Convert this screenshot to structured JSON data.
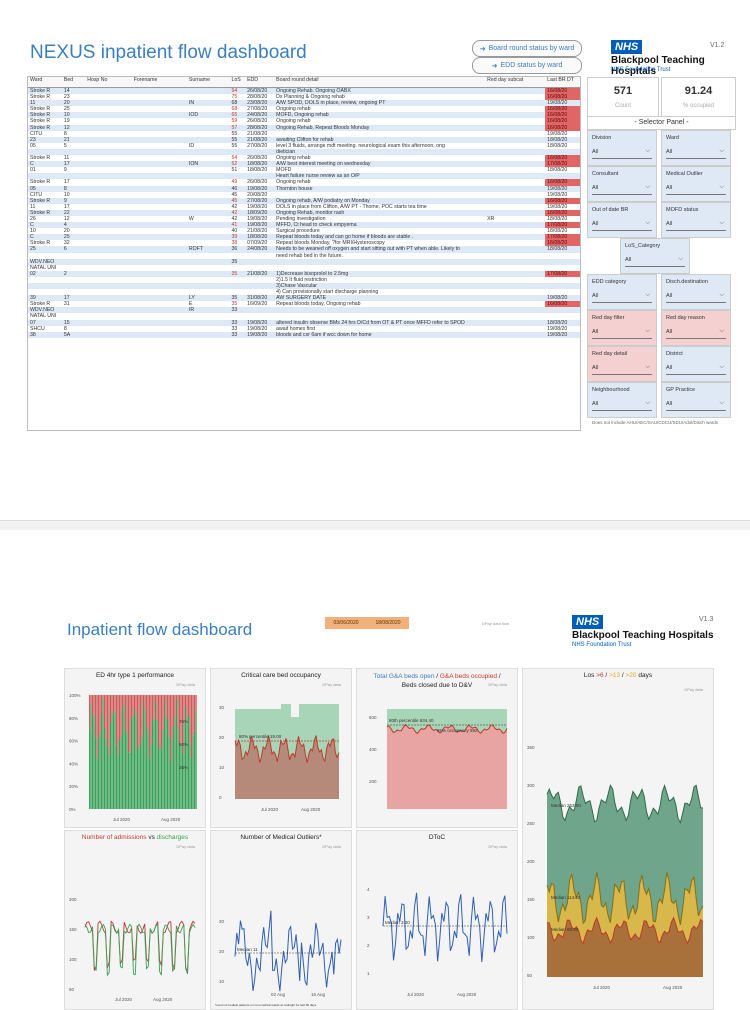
{
  "dash1": {
    "title": "NEXUS inpatient flow dashboard",
    "nav": [
      {
        "label": "Board round status by ward",
        "icon": "arrow-icon"
      },
      {
        "label": "EDD status by ward",
        "icon": "arrow-icon"
      }
    ],
    "nhs": "NHS",
    "trust": "Blackpool Teaching Hospitals",
    "trust_sub": "NHS Foundation Trust",
    "version": "V1.2",
    "columns": [
      "Ward",
      "Bed",
      "Hosp No",
      "Forename",
      "Surname",
      "LoS",
      "EDD",
      "Board round detail",
      "Red day subcat",
      "Last BR DT"
    ],
    "rows": [
      {
        "ward": "Stroke R",
        "bed": "14",
        "los": "94",
        "edd": "26/08/20",
        "detail": "Ongoing Rehab. Ongoing OABX",
        "sub": "",
        "last": "16/08/20",
        "red": true
      },
      {
        "ward": "Stroke R",
        "bed": "23",
        "los": "75",
        "edd": "28/08/20",
        "detail": "Dx Planning & Ongoing rehab",
        "sub": "",
        "last": "16/08/20",
        "red": true
      },
      {
        "ward": "11",
        "bed": "20",
        "surname": "IN",
        "los": "68",
        "edd": "23/08/20",
        "detail": "A/W SPOD, DOLS in place, review, ongoing PT",
        "sub": "",
        "last": "19/08/20",
        "red": false
      },
      {
        "ward": "Stroke R",
        "bed": "25",
        "los": "68",
        "edd": "27/08/20",
        "detail": "Ongoing rehab",
        "sub": "",
        "last": "16/08/20",
        "red": true
      },
      {
        "ward": "Stroke R",
        "bed": "10",
        "surname": "IOD",
        "los": "65",
        "edd": "24/08/20",
        "detail": "MOFD, Ongoing rehab",
        "sub": "",
        "last": "16/08/20",
        "red": true
      },
      {
        "ward": "Stroke R",
        "bed": "19",
        "los": "59",
        "edd": "26/08/20",
        "detail": "Ongoing rehab",
        "sub": "",
        "last": "16/08/20",
        "red": true
      },
      {
        "ward": "Stroke R",
        "bed": "12",
        "los": "57",
        "edd": "28/08/20",
        "detail": "Ongoing Rehab, Repeat Bloods Monday",
        "sub": "",
        "last": "16/08/20",
        "red": true
      },
      {
        "ward": "CITU",
        "bed": "8",
        "los": "55",
        "edd": "21/08/20",
        "detail": "",
        "sub": "",
        "last": "19/08/20",
        "red": false
      },
      {
        "ward": "23",
        "bed": "21",
        "los": "55",
        "edd": "21/08/20",
        "detail": "awaiting Clifton for rehab",
        "sub": "",
        "last": "18/08/20",
        "red": false
      },
      {
        "ward": "05",
        "bed": "5",
        "surname": "ID",
        "los": "55",
        "edd": "27/08/20",
        "detail": "level 3 fluids, arrange mdt meeting. neurological exam this afternoon, ong",
        "sub": "",
        "last": "18/08/20",
        "red": false
      },
      {
        "ward": "",
        "bed": "",
        "los": "",
        "edd": "",
        "detail": "dietician",
        "sub": "",
        "last": "",
        "red": false
      },
      {
        "ward": "Stroke R",
        "bed": "11",
        "los": "54",
        "edd": "26/08/20",
        "detail": "Ongoing rehab",
        "sub": "",
        "last": "16/08/20",
        "red": true
      },
      {
        "ward": "C",
        "bed": "17",
        "surname": "ION",
        "los": "52",
        "edd": "18/08/20",
        "detail": "A/W best interest meeting on wednesday",
        "sub": "",
        "last": "17/08/20",
        "red": true
      },
      {
        "ward": "01",
        "bed": "9",
        "los": "51",
        "edd": "18/08/20",
        "detail": "MOFD",
        "sub": "",
        "last": "18/08/20",
        "red": false
      },
      {
        "ward": "",
        "bed": "",
        "los": "",
        "edd": "",
        "detail": "Heart failure nurse review as an O/P",
        "sub": "",
        "last": "",
        "red": false
      },
      {
        "ward": "Stroke R",
        "bed": "17",
        "los": "49",
        "edd": "26/08/20",
        "detail": "Ongoing rehab",
        "sub": "",
        "last": "16/08/20",
        "red": true
      },
      {
        "ward": "05",
        "bed": "8",
        "los": "46",
        "edd": "19/08/20",
        "detail": "Thornton house",
        "sub": "",
        "last": "19/08/20",
        "red": false
      },
      {
        "ward": "CITU",
        "bed": "10",
        "los": "45",
        "edd": "20/08/20",
        "detail": "",
        "sub": "",
        "last": "19/08/20",
        "red": false
      },
      {
        "ward": "Stroke R",
        "bed": "9",
        "los": "45",
        "edd": "27/08/20",
        "detail": "Ongoing rehab, A/W podiatry on Monday",
        "sub": "",
        "last": "16/08/20",
        "red": true
      },
      {
        "ward": "11",
        "bed": "17",
        "los": "42",
        "edd": "19/08/20",
        "detail": "DOLS in place from Clifton, A/W PT - Thome, POC starts tea time",
        "sub": "",
        "last": "19/08/20",
        "red": false
      },
      {
        "ward": "Stroke R",
        "bed": "22",
        "los": "42",
        "edd": "18/09/20",
        "detail": "Ongoing Rehab, monitor rash",
        "sub": "",
        "last": "16/08/20",
        "red": true
      },
      {
        "ward": "26",
        "bed": "12",
        "surname": "W",
        "los": "42",
        "edd": "19/08/20",
        "detail": "Pending investigation",
        "sub": "XR",
        "last": "18/08/20",
        "red": false
      },
      {
        "ward": "C",
        "bed": "4",
        "los": "41",
        "edd": "19/08/20",
        "detail": "MFFD, Ct head to check empyema",
        "sub": "",
        "last": "17/08/20",
        "red": true
      },
      {
        "ward": "10",
        "bed": "20",
        "los": "40",
        "edd": "21/08/20",
        "detail": "Surgical procedure",
        "sub": "",
        "last": "18/08/20",
        "red": false
      },
      {
        "ward": "C",
        "bed": "25",
        "los": "39",
        "edd": "18/08/20",
        "detail": "Repeat bloods today and can go home if bloods are stable .",
        "sub": "",
        "last": "17/08/20",
        "red": true
      },
      {
        "ward": "Stroke R",
        "bed": "32",
        "los": "38",
        "edd": "07/09/20",
        "detail": "Repeat bloods Monday, ?for MRI/Hysteroscopy",
        "sub": "",
        "last": "16/08/20",
        "red": true
      },
      {
        "ward": "25",
        "bed": "6",
        "surname": "ROFT",
        "los": "36",
        "edd": "24/08/20",
        "detail": "Needs to be weaned off oxygen and start sitting out with PT when able. Likely to",
        "sub": "",
        "last": "18/08/20",
        "red": false
      },
      {
        "ward": "",
        "bed": "",
        "los": "",
        "edd": "",
        "detail": "need rehab bed in the future.",
        "sub": "",
        "last": "",
        "red": false
      },
      {
        "ward": "WDV.NEO",
        "bed": "",
        "los": "35",
        "edd": "",
        "detail": "",
        "sub": "",
        "last": "",
        "red": false
      },
      {
        "ward": "NATAL UNI",
        "bed": "",
        "los": "",
        "edd": "",
        "detail": "",
        "sub": "",
        "last": "",
        "red": false
      },
      {
        "ward": "02",
        "bed": "2",
        "los": "35",
        "edd": "21/08/20",
        "detail": "1)Decrease bisoprolol to 2.5mg",
        "sub": "",
        "last": "17/08/20",
        "red": true
      },
      {
        "ward": "",
        "bed": "",
        "los": "",
        "edd": "",
        "detail": "2)1.5 lt fluid restriction",
        "sub": "",
        "last": "",
        "red": false
      },
      {
        "ward": "",
        "bed": "",
        "los": "",
        "edd": "",
        "detail": "3)Chase Vascular",
        "sub": "",
        "last": "",
        "red": false
      },
      {
        "ward": "",
        "bed": "",
        "los": "",
        "edd": "",
        "detail": "4) Can provisionally start discharge planning",
        "sub": "",
        "last": "",
        "red": false
      },
      {
        "ward": "39",
        "bed": "17",
        "surname": "LY",
        "los": "35",
        "edd": "31/08/20",
        "detail": "AW SURGERY DATE",
        "sub": "",
        "last": "19/08/20",
        "red": false
      },
      {
        "ward": "Stroke R",
        "bed": "31",
        "surname": "E",
        "los": "35",
        "edd": "16/09/20",
        "detail": "Repeat bloods today, Ongoing rehab",
        "sub": "",
        "last": "16/08/20",
        "red": true
      },
      {
        "ward": "WDV.NEO",
        "bed": "",
        "surname": "IR",
        "los": "33",
        "edd": "",
        "detail": "",
        "sub": "",
        "last": "",
        "red": false
      },
      {
        "ward": "NATAL UNI",
        "bed": "",
        "los": "",
        "edd": "",
        "detail": "",
        "sub": "",
        "last": "",
        "red": false
      },
      {
        "ward": "07",
        "bed": "15",
        "los": "33",
        "edd": "19/08/20",
        "detail": "altered insulin observe BMs 24 hrs D/Cd from OT & PT once MFFD refer to SPOD",
        "sub": "",
        "last": "18/08/20",
        "red": false
      },
      {
        "ward": "SHCU",
        "bed": "8",
        "los": "33",
        "edd": "19/08/20",
        "detail": "await homes first",
        "sub": "",
        "last": "19/08/20",
        "red": false
      },
      {
        "ward": "38",
        "bed": "5A",
        "los": "33",
        "edd": "19/08/20",
        "detail": "bloods and cxr 6am if wcc down for home",
        "sub": "",
        "last": "19/08/20",
        "red": false
      }
    ],
    "kpis": [
      {
        "value": "571",
        "label": "Count"
      },
      {
        "value": "91.24",
        "label": "% occupied"
      }
    ],
    "selector_title": "- Selector Panel -",
    "slicers": [
      {
        "label": "Division",
        "value": "All",
        "pink": false
      },
      {
        "label": "Ward",
        "value": "All",
        "pink": false
      },
      {
        "label": "Consultant",
        "value": "All",
        "pink": false
      },
      {
        "label": "Medical Outlier",
        "value": "All",
        "pink": false
      },
      {
        "label": "Out of date BR",
        "value": "All",
        "pink": false
      },
      {
        "label": "MOFD status",
        "value": "All",
        "pink": false
      },
      {
        "label": "LoS_Category",
        "value": "All",
        "pink": false
      },
      {
        "label": "EDD category",
        "value": "All",
        "pink": false
      },
      {
        "label": "Disch.destination",
        "value": "All",
        "pink": false
      },
      {
        "label": "Red day filter",
        "value": "All",
        "pink": true
      },
      {
        "label": "Red day reason",
        "value": "All",
        "pink": true
      },
      {
        "label": "Red day detail",
        "value": "All",
        "pink": true
      },
      {
        "label": "District",
        "value": "All",
        "pink": false
      },
      {
        "label": "Neighbourhood",
        "value": "All",
        "pink": false
      },
      {
        "label": "GP Practice",
        "value": "All",
        "pink": false
      }
    ],
    "footnote": "Does not include AHU/AEC/SAU/CDCU/SDU/Adol/Disch wards"
  },
  "dash2": {
    "title": "Inpatient flow dashboard",
    "dates": [
      "03/06/2020",
      "18/08/2020"
    ],
    "update_note": "DPay data flow",
    "nhs": "NHS",
    "trust": "Blackpool Teaching Hospitals",
    "trust_sub": "NHS Foundation Trust",
    "version": "V1.3",
    "tile_tag": "DPay data",
    "colors": {
      "green": "#3aa05a",
      "red": "#c0392b",
      "grey_bg": "#f4f4f4",
      "blue_line": "#2f5fb5",
      "amber": "#e5a82a",
      "teal_area": "#4e8f6e"
    },
    "tiles": {
      "ed": {
        "title": "ED 4hr type 1 performance",
        "yticks": [
          "100%",
          "80%",
          "60%",
          "40%",
          "20%",
          "0%"
        ],
        "xticks": [
          "Jul 2020",
          "Aug 2020"
        ],
        "labels": [
          "75%",
          "50%",
          "25%"
        ]
      },
      "cc": {
        "title": "Critical care bed occupancy",
        "yticks": [
          "30",
          "20",
          "10",
          "0"
        ],
        "xticks": [
          "Jul 2020",
          "Aug 2020"
        ],
        "ann": "80% percentile 19.00"
      },
      "ga": {
        "title_a": "Total G&A beds open",
        "title_b": "G&A beds occupied",
        "title_c": "Beds closed due to D&V",
        "sep": " / ",
        "yticks": [
          "600",
          "400",
          "200"
        ],
        "ann1": "80th percentile 634.40",
        "ann2": "85% occupancy 592"
      },
      "los": {
        "title_pre": "Los ",
        "g1": ">6",
        "g2": ">13",
        "g3": ">20",
        "title_post": " days",
        "yticks": [
          "350",
          "300",
          "250",
          "200",
          "150",
          "100",
          "50"
        ],
        "xticks": [
          "Jul 2020",
          "Aug 2020"
        ],
        "m1": "Median 253.00",
        "m2": "Median 114.00",
        "m3": "Median 68.00"
      },
      "adm": {
        "title_a": "Number of admissions",
        "vs": " vs ",
        "title_b": "discharges",
        "yticks": [
          "200",
          "150",
          "100",
          "50"
        ],
        "xticks": [
          "Jul 2020",
          "Aug 2020"
        ]
      },
      "mo": {
        "title": "Number of Medical Outliers*",
        "yticks": [
          "30",
          "20",
          "10"
        ],
        "xticks": [
          "02 Aug",
          "16 Aug"
        ],
        "ann": "Median 11",
        "foot": "*count of medical patients on non-medical wards at midnight for last 60 days"
      },
      "dtoc": {
        "title": "DToC",
        "yticks": [
          "4",
          "3",
          "2",
          "1"
        ],
        "xticks": [
          "Jul 2020",
          "Aug 2020"
        ],
        "ann": "Median 3.00"
      }
    }
  }
}
